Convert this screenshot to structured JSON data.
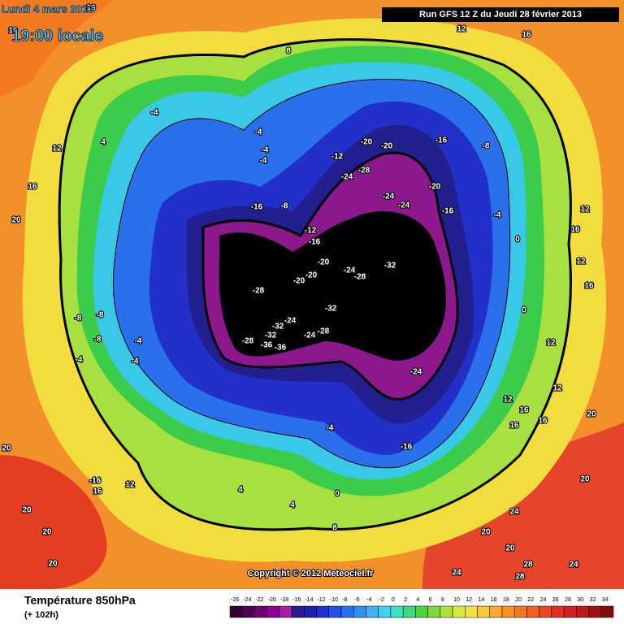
{
  "header": {
    "date": "Lundi 4 mars 2013",
    "time": "19:00 locale",
    "run": "Run GFS 12 Z du Jeudi 28 février 2013"
  },
  "map": {
    "copyright": "Copyright © 2012 Meteociel.fr",
    "contour_labels": [
      16,
      16,
      8,
      12,
      16,
      -4,
      4,
      12,
      16,
      20,
      -4,
      -4,
      -4,
      -20,
      -20,
      -16,
      -8,
      -12,
      -28,
      -24,
      -20,
      -24,
      -24,
      -16,
      -16,
      -8,
      -12,
      -16,
      -20,
      -32,
      -24,
      -28,
      -20,
      -20,
      -28,
      -32,
      -24,
      -32,
      -32,
      -28,
      -36,
      -36,
      -28,
      -24,
      -24,
      -8,
      -8,
      -8,
      -4,
      -4,
      -4,
      12,
      16,
      12,
      16,
      12,
      12,
      16,
      16,
      20,
      12,
      16,
      -16,
      -4,
      20,
      -16,
      16,
      12,
      20,
      4,
      8,
      24,
      20,
      20,
      20,
      28,
      24,
      28,
      24,
      20,
      20,
      4,
      0,
      0,
      0,
      -4
    ]
  },
  "footer": {
    "title": "Température 850hPa",
    "lead": "(+ 102h)"
  },
  "colorbar": {
    "ticks": [
      -26,
      -24,
      -22,
      -20,
      -18,
      -16,
      -14,
      -12,
      -10,
      -8,
      -6,
      -4,
      -2,
      0,
      2,
      4,
      6,
      8,
      10,
      12,
      14,
      16,
      18,
      20,
      22,
      24,
      26,
      28,
      30,
      32,
      34
    ],
    "colors": [
      "#300030",
      "#500050",
      "#700070",
      "#900090",
      "#a020a0",
      "#2a1a90",
      "#2020b0",
      "#2030d0",
      "#2050e8",
      "#2870f0",
      "#3090f0",
      "#40b0f0",
      "#40d0f0",
      "#40e0c0",
      "#40d880",
      "#50d040",
      "#80d840",
      "#b0e040",
      "#d8e840",
      "#f0e040",
      "#f8c838",
      "#f8a830",
      "#f89028",
      "#f07820",
      "#f06020",
      "#e84820",
      "#e03020",
      "#d02020",
      "#c01818",
      "#a01010",
      "#801010"
    ]
  }
}
